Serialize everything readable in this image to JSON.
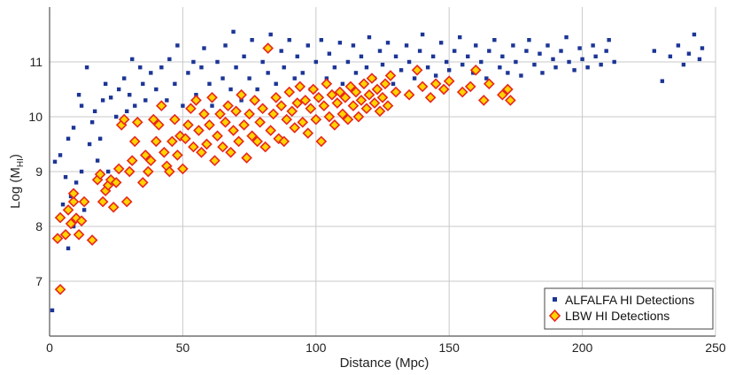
{
  "chart_data": {
    "type": "scatter",
    "title": "",
    "xlabel": "Distance (Mpc)",
    "ylabel_main": "Log (M",
    "ylabel_sub": "HI",
    "ylabel_close": ")",
    "xlim": [
      0,
      250
    ],
    "ylim": [
      6,
      12
    ],
    "x_ticks": [
      0,
      50,
      100,
      150,
      200,
      250
    ],
    "y_ticks": [
      7,
      8,
      9,
      10,
      11
    ],
    "grid": true,
    "legend_position": "bottom-right",
    "series": [
      {
        "name": "ALFALFA HI Detections",
        "marker": "square",
        "color": "#1c3596",
        "points": [
          [
            1,
            6.47
          ],
          [
            2,
            9.18
          ],
          [
            4,
            9.3
          ],
          [
            5,
            8.4
          ],
          [
            6,
            8.9
          ],
          [
            7,
            7.6
          ],
          [
            7,
            9.6
          ],
          [
            8,
            8.55
          ],
          [
            9,
            8.0
          ],
          [
            9,
            9.8
          ],
          [
            10,
            8.8
          ],
          [
            11,
            10.4
          ],
          [
            12,
            9.0
          ],
          [
            12,
            10.2
          ],
          [
            13,
            8.3
          ],
          [
            14,
            10.9
          ],
          [
            15,
            9.5
          ],
          [
            16,
            9.9
          ],
          [
            17,
            10.1
          ],
          [
            18,
            9.2
          ],
          [
            19,
            9.6
          ],
          [
            20,
            10.3
          ],
          [
            21,
            10.6
          ],
          [
            22,
            9.0
          ],
          [
            23,
            10.35
          ],
          [
            25,
            10.0
          ],
          [
            26,
            10.5
          ],
          [
            28,
            10.7
          ],
          [
            29,
            10.1
          ],
          [
            30,
            10.4
          ],
          [
            31,
            11.05
          ],
          [
            32,
            10.2
          ],
          [
            34,
            10.9
          ],
          [
            35,
            10.6
          ],
          [
            36,
            10.3
          ],
          [
            38,
            10.8
          ],
          [
            40,
            10.5
          ],
          [
            42,
            10.9
          ],
          [
            44,
            10.3
          ],
          [
            45,
            11.05
          ],
          [
            47,
            10.6
          ],
          [
            48,
            11.3
          ],
          [
            50,
            10.2
          ],
          [
            52,
            10.8
          ],
          [
            54,
            11.0
          ],
          [
            55,
            10.4
          ],
          [
            57,
            10.9
          ],
          [
            58,
            11.25
          ],
          [
            60,
            10.6
          ],
          [
            61,
            10.2
          ],
          [
            63,
            11.0
          ],
          [
            65,
            10.7
          ],
          [
            66,
            11.3
          ],
          [
            68,
            10.5
          ],
          [
            69,
            11.55
          ],
          [
            70,
            10.9
          ],
          [
            72,
            10.3
          ],
          [
            73,
            11.1
          ],
          [
            75,
            10.7
          ],
          [
            76,
            11.4
          ],
          [
            78,
            10.5
          ],
          [
            80,
            11.0
          ],
          [
            82,
            10.8
          ],
          [
            83,
            11.5
          ],
          [
            85,
            10.6
          ],
          [
            87,
            11.2
          ],
          [
            88,
            10.9
          ],
          [
            90,
            11.4
          ],
          [
            92,
            10.7
          ],
          [
            93,
            11.1
          ],
          [
            95,
            10.8
          ],
          [
            97,
            11.3
          ],
          [
            98,
            10.5
          ],
          [
            100,
            11.0
          ],
          [
            102,
            11.4
          ],
          [
            104,
            10.7
          ],
          [
            105,
            11.15
          ],
          [
            107,
            10.9
          ],
          [
            109,
            11.35
          ],
          [
            110,
            10.6
          ],
          [
            112,
            11.0
          ],
          [
            114,
            11.3
          ],
          [
            115,
            10.8
          ],
          [
            117,
            11.1
          ],
          [
            119,
            10.9
          ],
          [
            120,
            11.45
          ],
          [
            122,
            10.7
          ],
          [
            124,
            11.2
          ],
          [
            125,
            10.95
          ],
          [
            127,
            11.35
          ],
          [
            129,
            10.6
          ],
          [
            130,
            11.1
          ],
          [
            132,
            10.85
          ],
          [
            134,
            11.3
          ],
          [
            135,
            11.0
          ],
          [
            137,
            10.7
          ],
          [
            139,
            11.2
          ],
          [
            140,
            11.5
          ],
          [
            142,
            10.9
          ],
          [
            144,
            11.1
          ],
          [
            145,
            10.75
          ],
          [
            147,
            11.35
          ],
          [
            149,
            11.0
          ],
          [
            150,
            10.85
          ],
          [
            152,
            11.2
          ],
          [
            154,
            11.45
          ],
          [
            155,
            10.95
          ],
          [
            157,
            11.1
          ],
          [
            159,
            10.8
          ],
          [
            160,
            11.3
          ],
          [
            162,
            11.0
          ],
          [
            164,
            10.7
          ],
          [
            165,
            11.2
          ],
          [
            167,
            11.4
          ],
          [
            169,
            10.9
          ],
          [
            170,
            11.1
          ],
          [
            172,
            10.8
          ],
          [
            174,
            11.3
          ],
          [
            175,
            11.0
          ],
          [
            177,
            10.75
          ],
          [
            179,
            11.2
          ],
          [
            180,
            11.4
          ],
          [
            182,
            10.95
          ],
          [
            184,
            11.15
          ],
          [
            185,
            10.8
          ],
          [
            187,
            11.3
          ],
          [
            189,
            11.05
          ],
          [
            190,
            10.9
          ],
          [
            192,
            11.2
          ],
          [
            194,
            11.45
          ],
          [
            195,
            11.0
          ],
          [
            197,
            10.85
          ],
          [
            199,
            11.25
          ],
          [
            200,
            11.05
          ],
          [
            202,
            10.9
          ],
          [
            204,
            11.3
          ],
          [
            205,
            11.1
          ],
          [
            207,
            10.95
          ],
          [
            209,
            11.2
          ],
          [
            210,
            11.4
          ],
          [
            212,
            11.0
          ],
          [
            227,
            11.2
          ],
          [
            230,
            10.65
          ],
          [
            233,
            11.1
          ],
          [
            236,
            11.3
          ],
          [
            238,
            10.95
          ],
          [
            240,
            11.15
          ],
          [
            242,
            11.5
          ],
          [
            244,
            11.05
          ],
          [
            245,
            11.25
          ]
        ]
      },
      {
        "name": "LBW HI Detections",
        "marker": "diamond",
        "color": "#ffd400",
        "edge": "#e8261c",
        "points": [
          [
            4,
            6.85
          ],
          [
            3,
            7.78
          ],
          [
            4,
            8.16
          ],
          [
            6,
            7.85
          ],
          [
            7,
            8.3
          ],
          [
            8,
            8.05
          ],
          [
            9,
            8.45
          ],
          [
            9,
            8.6
          ],
          [
            10,
            8.15
          ],
          [
            11,
            7.85
          ],
          [
            12,
            8.1
          ],
          [
            13,
            8.45
          ],
          [
            16,
            7.75
          ],
          [
            18,
            8.85
          ],
          [
            19,
            8.95
          ],
          [
            20,
            8.45
          ],
          [
            21,
            8.65
          ],
          [
            22,
            8.75
          ],
          [
            23,
            8.85
          ],
          [
            24,
            8.35
          ],
          [
            25,
            8.8
          ],
          [
            26,
            9.05
          ],
          [
            27,
            9.85
          ],
          [
            28,
            9.95
          ],
          [
            29,
            8.45
          ],
          [
            30,
            9.0
          ],
          [
            31,
            9.2
          ],
          [
            32,
            9.55
          ],
          [
            33,
            9.9
          ],
          [
            35,
            8.8
          ],
          [
            36,
            9.3
          ],
          [
            37,
            9.0
          ],
          [
            38,
            9.2
          ],
          [
            39,
            9.95
          ],
          [
            40,
            9.55
          ],
          [
            41,
            9.85
          ],
          [
            42,
            10.2
          ],
          [
            43,
            9.35
          ],
          [
            44,
            9.1
          ],
          [
            45,
            9.0
          ],
          [
            46,
            9.55
          ],
          [
            47,
            9.95
          ],
          [
            48,
            9.3
          ],
          [
            49,
            9.65
          ],
          [
            50,
            9.05
          ],
          [
            51,
            9.6
          ],
          [
            52,
            9.85
          ],
          [
            53,
            10.15
          ],
          [
            54,
            9.45
          ],
          [
            55,
            10.3
          ],
          [
            56,
            9.75
          ],
          [
            57,
            9.35
          ],
          [
            58,
            10.05
          ],
          [
            59,
            9.5
          ],
          [
            60,
            9.85
          ],
          [
            61,
            10.35
          ],
          [
            62,
            9.2
          ],
          [
            63,
            9.65
          ],
          [
            64,
            10.05
          ],
          [
            65,
            9.45
          ],
          [
            66,
            9.9
          ],
          [
            67,
            10.2
          ],
          [
            68,
            9.35
          ],
          [
            69,
            9.75
          ],
          [
            70,
            10.1
          ],
          [
            71,
            9.55
          ],
          [
            72,
            10.4
          ],
          [
            73,
            9.85
          ],
          [
            74,
            9.25
          ],
          [
            75,
            10.05
          ],
          [
            76,
            9.65
          ],
          [
            77,
            10.3
          ],
          [
            78,
            9.55
          ],
          [
            79,
            9.9
          ],
          [
            80,
            10.15
          ],
          [
            81,
            9.45
          ],
          [
            82,
            11.25
          ],
          [
            83,
            9.75
          ],
          [
            84,
            10.05
          ],
          [
            85,
            10.35
          ],
          [
            86,
            9.6
          ],
          [
            87,
            10.2
          ],
          [
            88,
            9.55
          ],
          [
            89,
            9.95
          ],
          [
            90,
            10.45
          ],
          [
            91,
            10.1
          ],
          [
            92,
            9.8
          ],
          [
            93,
            10.25
          ],
          [
            94,
            10.55
          ],
          [
            95,
            9.9
          ],
          [
            96,
            10.3
          ],
          [
            97,
            9.7
          ],
          [
            98,
            10.15
          ],
          [
            99,
            10.5
          ],
          [
            100,
            9.95
          ],
          [
            101,
            10.35
          ],
          [
            102,
            9.55
          ],
          [
            103,
            10.2
          ],
          [
            104,
            10.6
          ],
          [
            105,
            10.0
          ],
          [
            106,
            10.4
          ],
          [
            107,
            9.85
          ],
          [
            108,
            10.25
          ],
          [
            109,
            10.45
          ],
          [
            110,
            10.05
          ],
          [
            111,
            10.35
          ],
          [
            112,
            9.95
          ],
          [
            113,
            10.55
          ],
          [
            114,
            10.2
          ],
          [
            115,
            10.45
          ],
          [
            116,
            10.0
          ],
          [
            117,
            10.3
          ],
          [
            118,
            10.6
          ],
          [
            119,
            10.15
          ],
          [
            120,
            10.4
          ],
          [
            121,
            10.7
          ],
          [
            122,
            10.25
          ],
          [
            123,
            10.5
          ],
          [
            124,
            10.1
          ],
          [
            125,
            10.35
          ],
          [
            126,
            10.6
          ],
          [
            127,
            10.2
          ],
          [
            128,
            10.75
          ],
          [
            130,
            10.45
          ],
          [
            135,
            10.4
          ],
          [
            138,
            10.85
          ],
          [
            140,
            10.55
          ],
          [
            143,
            10.35
          ],
          [
            145,
            10.6
          ],
          [
            148,
            10.5
          ],
          [
            150,
            10.65
          ],
          [
            155,
            10.45
          ],
          [
            158,
            10.55
          ],
          [
            160,
            10.85
          ],
          [
            163,
            10.3
          ],
          [
            165,
            10.6
          ],
          [
            170,
            10.4
          ],
          [
            172,
            10.5
          ],
          [
            173,
            10.3
          ]
        ]
      }
    ]
  }
}
